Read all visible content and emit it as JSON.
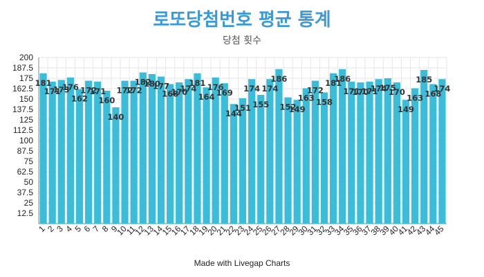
{
  "title": "로또당첨번호 평균 통계",
  "subtitle": "당첨 횟수",
  "footer": "Made with Livegap Charts",
  "colors": {
    "bar": "#3bbcd8",
    "title": "#3a9ad9",
    "grid": "#e6e6e6",
    "axis": "#888888"
  },
  "chart_data": {
    "type": "bar",
    "title": "로또당첨번호 평균 통계",
    "subtitle": "당첨 횟수",
    "xlabel": "",
    "ylabel": "",
    "ylim": [
      0,
      200
    ],
    "yticks": [
      "200",
      "187.5",
      "175",
      "162.5",
      "150",
      "137.5",
      "125",
      "112.5",
      "100",
      "87.5",
      "75",
      "62.5",
      "50",
      "37.5",
      "25",
      "12.5"
    ],
    "grid": true,
    "categories": [
      "1",
      "2",
      "3",
      "4",
      "5",
      "6",
      "7",
      "8",
      "9",
      "10",
      "11",
      "12",
      "13",
      "14",
      "15",
      "16",
      "17",
      "18",
      "19",
      "20",
      "21",
      "22",
      "23",
      "24",
      "25",
      "26",
      "27",
      "28",
      "29",
      "30",
      "31",
      "32",
      "33",
      "34",
      "35",
      "36",
      "37",
      "38",
      "39",
      "40",
      "41",
      "42",
      "43",
      "44",
      "45"
    ],
    "values": [
      181,
      171,
      173,
      176,
      162,
      172,
      171,
      160,
      140,
      172,
      172,
      182,
      180,
      177,
      168,
      170,
      174,
      181,
      164,
      176,
      169,
      144,
      151,
      174,
      155,
      174,
      186,
      152,
      149,
      163,
      172,
      158,
      181,
      186,
      171,
      170,
      171,
      174,
      175,
      170,
      149,
      163,
      185,
      168,
      174
    ]
  }
}
